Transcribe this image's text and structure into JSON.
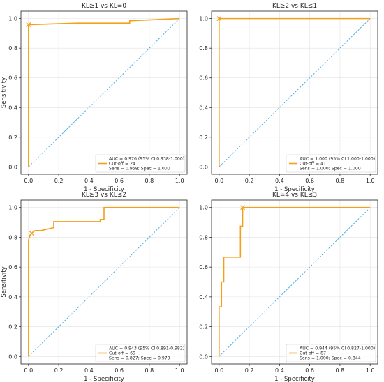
{
  "colors": {
    "roc": "#f5a01a",
    "diagonal": "#3ea9e6",
    "axis": "#222222",
    "grid": "#e2e2e2"
  },
  "chart_data": [
    {
      "type": "line",
      "title": "KL≥1 vs KL=0",
      "xlabel": "1 - Specificity",
      "ylabel": "Sensitivity",
      "xlim": [
        0,
        1
      ],
      "ylim": [
        0,
        1
      ],
      "xticks": [
        "0.0",
        "0.2",
        "0.4",
        "0.6",
        "0.8",
        "1.0"
      ],
      "yticks": [
        "0.0",
        "0.2",
        "0.4",
        "0.6",
        "0.8",
        "1.0"
      ],
      "grid": true,
      "legend_position": "bottom-right",
      "legend": [
        "AUC = 0.976 (95% CI 0.938-1.000)",
        "Cut-off = 24",
        "Sens = 0.958; Spec = 1.000"
      ],
      "series": [
        {
          "x": [
            0,
            0,
            0.2,
            0.33,
            0.67,
            0.67,
            1.0
          ],
          "y": [
            0,
            0.958,
            0.965,
            0.969,
            0.969,
            0.985,
            1.0
          ]
        },
        {
          "x": [
            0,
            1
          ],
          "y": [
            0,
            1
          ]
        }
      ],
      "cutoff_point": {
        "x": 0,
        "y": 0.958
      }
    },
    {
      "type": "line",
      "title": "KL≥2 vs KL≤1",
      "xlabel": "1 - Specificity",
      "ylabel": "",
      "xlim": [
        0,
        1
      ],
      "ylim": [
        0,
        1
      ],
      "xticks": [
        "0.0",
        "0.2",
        "0.4",
        "0.6",
        "0.8",
        "1.0"
      ],
      "yticks": [
        "0.0",
        "0.2",
        "0.4",
        "0.6",
        "0.8",
        "1.0"
      ],
      "grid": true,
      "legend_position": "bottom-right",
      "legend": [
        "AUC = 1.000 (95% CI 1.000-1.000)",
        "Cut-off = 41",
        "Sens = 1.000; Spec = 1.000"
      ],
      "series": [
        {
          "x": [
            0,
            0,
            1.0
          ],
          "y": [
            0,
            1.0,
            1.0
          ]
        },
        {
          "x": [
            0,
            1
          ],
          "y": [
            0,
            1
          ]
        }
      ],
      "cutoff_point": {
        "x": 0,
        "y": 1.0
      }
    },
    {
      "type": "line",
      "title": "KL≥3 vs KL≤2",
      "xlabel": "1 - Specificity",
      "ylabel": "Sensitivity",
      "xlim": [
        0,
        1
      ],
      "ylim": [
        0,
        1
      ],
      "xticks": [
        "0.0",
        "0.2",
        "0.4",
        "0.6",
        "0.8",
        "1.0"
      ],
      "yticks": [
        "0.0",
        "0.2",
        "0.4",
        "0.6",
        "0.8",
        "1.0"
      ],
      "grid": true,
      "legend_position": "bottom-right",
      "legend": [
        "AUC = 0.943 (95% CI 0.891-0.982)",
        "Cut-off = 69",
        "Sens = 0.827; Spec = 0.979"
      ],
      "series": [
        {
          "x": [
            0,
            0,
            0.01,
            0.021,
            0.042,
            0.083,
            0.125,
            0.167,
            0.167,
            0.475,
            0.475,
            0.5,
            0.5,
            1.0
          ],
          "y": [
            0,
            0.78,
            0.81,
            0.827,
            0.845,
            0.845,
            0.855,
            0.865,
            0.905,
            0.905,
            0.92,
            0.92,
            1.0,
            1.0
          ]
        },
        {
          "x": [
            0,
            1
          ],
          "y": [
            0,
            1
          ]
        }
      ],
      "cutoff_point": {
        "x": 0.021,
        "y": 0.827
      }
    },
    {
      "type": "line",
      "title": "KL=4 vs KL≤3",
      "xlabel": "1 - Specificity",
      "ylabel": "",
      "xlim": [
        0,
        1
      ],
      "ylim": [
        0,
        1
      ],
      "xticks": [
        "0.0",
        "0.2",
        "0.4",
        "0.6",
        "0.8",
        "1.0"
      ],
      "yticks": [
        "0.0",
        "0.2",
        "0.4",
        "0.6",
        "0.8",
        "1.0"
      ],
      "grid": true,
      "legend_position": "bottom-right",
      "legend": [
        "AUC = 0.944 (95% CI 0.827-1.000)",
        "Cut-off = 87",
        "Sens = 1.000; Spec = 0.844"
      ],
      "series": [
        {
          "x": [
            0,
            0,
            0.016,
            0.016,
            0.031,
            0.031,
            0.141,
            0.141,
            0.156,
            0.156,
            1.0
          ],
          "y": [
            0,
            0.333,
            0.333,
            0.5,
            0.5,
            0.667,
            0.667,
            0.875,
            0.875,
            1.0,
            1.0
          ]
        },
        {
          "x": [
            0,
            1
          ],
          "y": [
            0,
            1
          ]
        }
      ],
      "cutoff_point": {
        "x": 0.156,
        "y": 1.0
      }
    }
  ]
}
